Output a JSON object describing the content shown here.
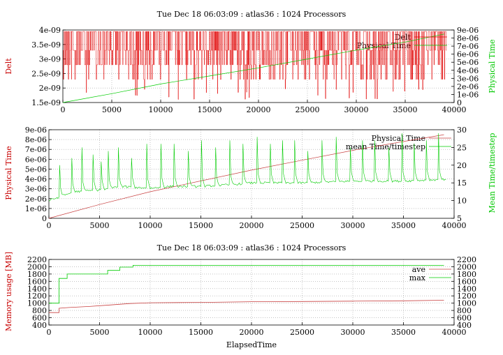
{
  "colors": {
    "red": "#e00000",
    "dark_red": "#c84040",
    "green": "#00cc00",
    "grid": "#a0a0a0"
  },
  "chart_data": [
    {
      "type": "line",
      "title": "Tue Dec 18 06:03:09 : atlas36 : 1024 Processors",
      "xlabel": "",
      "ylabel": "Delt",
      "y2label": "Physical Time",
      "xlim": [
        0,
        40000
      ],
      "ylim": [
        1.5e-09,
        4e-09
      ],
      "y2lim": [
        0,
        9e-06
      ],
      "x_ticks": [
        "0",
        "5000",
        "10000",
        "15000",
        "20000",
        "25000",
        "30000",
        "35000",
        "40000"
      ],
      "y_ticks": [
        "1.5e-09",
        "2e-09",
        "2.5e-09",
        "3e-09",
        "3.5e-09",
        "4e-09"
      ],
      "y2_ticks": [
        "0",
        "1e-06",
        "2e-06",
        "3e-06",
        "4e-06",
        "5e-06",
        "6e-06",
        "7e-06",
        "8e-06",
        "9e-06"
      ],
      "grid": true,
      "legend_position": "top-right",
      "series": [
        {
          "name": "Delt",
          "axis": "y",
          "color": "red",
          "description_values": {
            "levels": [
              2.3e-09,
              2.8e-09,
              3.3e-09,
              3.95e-09
            ],
            "min": 1.6e-09
          }
        },
        {
          "name": "Physical Time",
          "axis": "y2",
          "color": "green",
          "x": [
            0,
            5000,
            10000,
            15000,
            20000,
            25000,
            30000,
            35000,
            39000
          ],
          "values": [
            0,
            1.1e-06,
            2.3e-06,
            3.3e-06,
            4.3e-06,
            5.4e-06,
            6.5e-06,
            7.5e-06,
            8.5e-06
          ]
        }
      ]
    },
    {
      "type": "line",
      "title": "",
      "xlabel": "",
      "ylabel": "Physical Time",
      "y2label": "Mean Time/timestep",
      "xlim": [
        0,
        40000
      ],
      "ylim": [
        0,
        9e-06
      ],
      "y2lim": [
        5,
        30
      ],
      "x_ticks": [
        "0",
        "5000",
        "10000",
        "15000",
        "20000",
        "25000",
        "30000",
        "35000",
        "40000"
      ],
      "y_ticks": [
        "0",
        "1e-06",
        "2e-06",
        "3e-06",
        "4e-06",
        "5e-06",
        "6e-06",
        "7e-06",
        "8e-06",
        "9e-06"
      ],
      "y2_ticks": [
        "5",
        "10",
        "15",
        "20",
        "25",
        "30"
      ],
      "grid": true,
      "legend_position": "top-right",
      "series": [
        {
          "name": "Physical Time",
          "axis": "y",
          "color": "dark_red",
          "x": [
            0,
            5000,
            10000,
            15000,
            20000,
            25000,
            30000,
            35000,
            39000
          ],
          "values": [
            0,
            1.4e-06,
            2.7e-06,
            3.8e-06,
            4.9e-06,
            5.9e-06,
            6.9e-06,
            7.8e-06,
            8.5e-06
          ]
        },
        {
          "name": "mean Time/timestep",
          "axis": "y2",
          "color": "green",
          "baseline_x": [
            0,
            1000,
            2500,
            5000,
            7000,
            10000,
            12000,
            15000,
            18000,
            20000,
            25000,
            30000,
            35000,
            39000
          ],
          "baseline": [
            10,
            11,
            12.5,
            13,
            14,
            13.5,
            14,
            14,
            14.5,
            15,
            15,
            15.5,
            15.5,
            16
          ],
          "spike_x": [
            1000,
            2200,
            3200,
            4300,
            5100,
            5800,
            6800,
            8100,
            9600,
            11000,
            12300,
            13700,
            15000,
            16400,
            17800,
            19100,
            20500,
            21800,
            23000,
            24200,
            25500,
            26900,
            28300,
            29700,
            30900,
            32100,
            33500,
            34800,
            36000,
            37200,
            38400
          ],
          "spike_peak": [
            20,
            22,
            25,
            23,
            21,
            24,
            25,
            22,
            26,
            26,
            26,
            24,
            27,
            25,
            27,
            26,
            28,
            26,
            27,
            27,
            24,
            27,
            28,
            25,
            27,
            27,
            25,
            29,
            26,
            27,
            29
          ]
        }
      ]
    },
    {
      "type": "line",
      "title": "Tue Dec 18 06:03:09 : atlas36 : 1024 Processors",
      "xlabel": "ElapsedTime",
      "ylabel": "Memory usage [MB]",
      "y2label": "",
      "xlim": [
        0,
        40000
      ],
      "ylim": [
        400,
        2200
      ],
      "y2lim": [
        400,
        2200
      ],
      "x_ticks": [
        "0",
        "5000",
        "10000",
        "15000",
        "20000",
        "25000",
        "30000",
        "35000",
        "40000"
      ],
      "y_ticks": [
        "400",
        "600",
        "800",
        "1000",
        "1200",
        "1400",
        "1600",
        "1800",
        "2000",
        "2200"
      ],
      "y2_ticks": [
        "400",
        "600",
        "800",
        "1000",
        "1200",
        "1400",
        "1600",
        "1800",
        "2000",
        "2200"
      ],
      "grid": true,
      "legend_position": "top-right",
      "series": [
        {
          "name": "ave",
          "color": "dark_red",
          "x": [
            0,
            1000,
            1001,
            2000,
            4000,
            6000,
            8000,
            10000,
            15000,
            20000,
            25000,
            30000,
            35000,
            39000
          ],
          "values": [
            740,
            740,
            860,
            880,
            910,
            950,
            990,
            1010,
            1020,
            1040,
            1045,
            1055,
            1065,
            1080
          ]
        },
        {
          "name": "max",
          "color": "green",
          "x": [
            0,
            1000,
            1001,
            1800,
            1801,
            5800,
            5801,
            7000,
            7001,
            8300,
            8301,
            39000
          ],
          "values": [
            1000,
            1000,
            1680,
            1680,
            1800,
            1800,
            1900,
            1900,
            1990,
            1990,
            2040,
            2040
          ]
        }
      ]
    }
  ]
}
